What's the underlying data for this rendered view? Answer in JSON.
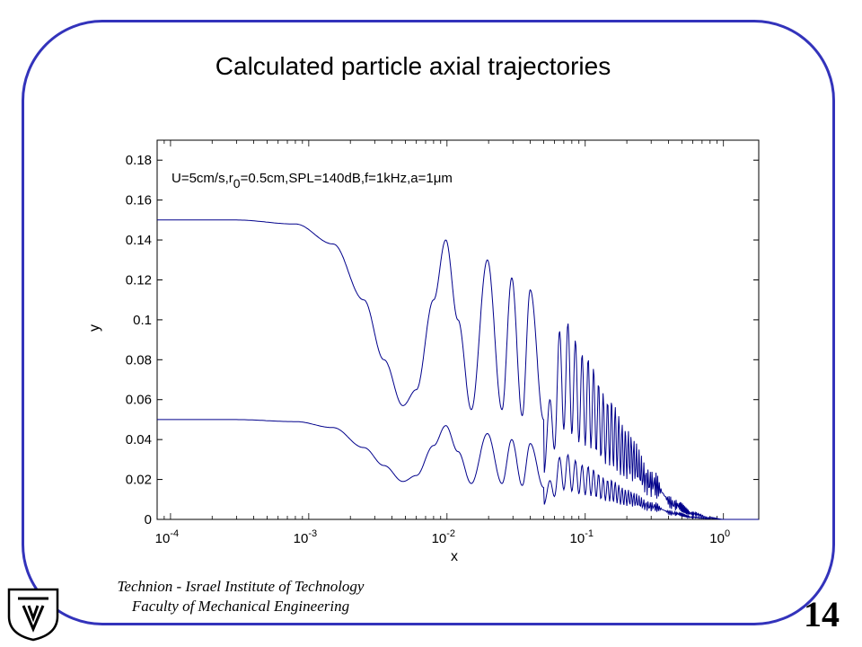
{
  "slide": {
    "title": "Calculated particle axial trajectories",
    "footer_line1": "Technion - Israel Institute of Technology",
    "footer_line2": "Faculty of Mechanical Engineering",
    "slide_number": "14",
    "frame_color": "#3333bb"
  },
  "logo": {
    "icon": "technion-logo-icon"
  },
  "chart_data": {
    "type": "line",
    "xlabel": "x",
    "ylabel": "y",
    "xscale": "log",
    "xlim": [
      8e-05,
      1.8
    ],
    "ylim": [
      0,
      0.19
    ],
    "grid": false,
    "line_color": "#00008b",
    "annotation": {
      "prefix": "U=5cm/s,r",
      "sub": "0",
      "mid": "=0.5cm,SPL=140dB,f=1kHz,a=1",
      "mu": "μ",
      "suffix": "m"
    },
    "xtick_labels": [
      {
        "value": 0.0001,
        "base": "10",
        "exp": "-4"
      },
      {
        "value": 0.001,
        "base": "10",
        "exp": "-3"
      },
      {
        "value": 0.01,
        "base": "10",
        "exp": "-2"
      },
      {
        "value": 0.1,
        "base": "10",
        "exp": "-1"
      },
      {
        "value": 1,
        "base": "10",
        "exp": "0"
      }
    ],
    "ytick_labels": [
      {
        "value": 0,
        "label": "0"
      },
      {
        "value": 0.02,
        "label": "0.02"
      },
      {
        "value": 0.04,
        "label": "0.04"
      },
      {
        "value": 0.06,
        "label": "0.06"
      },
      {
        "value": 0.08,
        "label": "0.08"
      },
      {
        "value": 0.1,
        "label": "0.1"
      },
      {
        "value": 0.12,
        "label": "0.12"
      },
      {
        "value": 0.14,
        "label": "0.14"
      },
      {
        "value": 0.16,
        "label": "0.16"
      },
      {
        "value": 0.18,
        "label": "0.18"
      }
    ],
    "series": [
      {
        "y0": 0.15,
        "x": [
          8e-05,
          0.0003,
          0.0008,
          0.0015,
          0.0025,
          0.0035,
          0.0048,
          0.006,
          0.008,
          0.0098,
          0.012,
          0.015,
          0.0196,
          0.025,
          0.0294,
          0.035,
          0.04,
          0.05,
          0.07,
          0.1,
          0.15,
          0.2,
          0.3,
          0.45,
          0.6,
          0.8,
          1.0,
          1.8
        ],
        "y": [
          0.15,
          0.15,
          0.148,
          0.138,
          0.11,
          0.08,
          0.057,
          0.065,
          0.11,
          0.14,
          0.1,
          0.055,
          0.13,
          0.055,
          0.121,
          0.052,
          0.115,
          0.05,
          0.1,
          0.082,
          0.06,
          0.045,
          0.025,
          0.01,
          0.004,
          0.001,
          0.0,
          0.0
        ]
      },
      {
        "y0": 0.05,
        "x": [
          8e-05,
          0.0003,
          0.0008,
          0.0015,
          0.0025,
          0.0035,
          0.0048,
          0.006,
          0.008,
          0.0098,
          0.012,
          0.015,
          0.0196,
          0.025,
          0.0294,
          0.035,
          0.04,
          0.05,
          0.07,
          0.1,
          0.15,
          0.2,
          0.3,
          0.45,
          0.6,
          0.8,
          1.0,
          1.8
        ],
        "y": [
          0.05,
          0.05,
          0.049,
          0.046,
          0.036,
          0.027,
          0.019,
          0.022,
          0.037,
          0.047,
          0.034,
          0.018,
          0.043,
          0.018,
          0.04,
          0.017,
          0.038,
          0.016,
          0.033,
          0.027,
          0.02,
          0.015,
          0.009,
          0.004,
          0.0015,
          0.0005,
          0.0,
          0.0
        ]
      }
    ]
  }
}
